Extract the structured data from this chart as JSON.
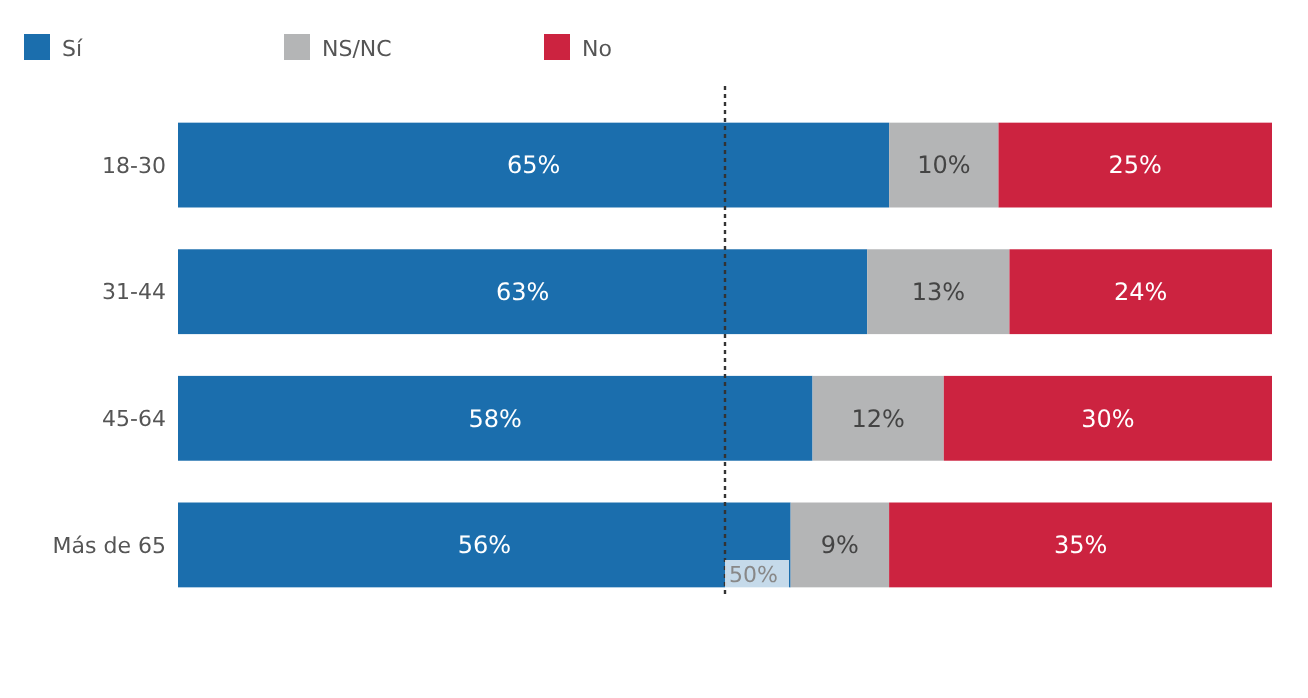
{
  "chart_data": {
    "type": "bar",
    "orientation": "horizontal",
    "stacked": true,
    "categories": [
      "18-30",
      "31-44",
      "45-64",
      "Más de 65"
    ],
    "series": [
      {
        "name": "Sí",
        "color": "#1b6ead",
        "values": [
          65,
          63,
          58,
          56
        ],
        "value_labels": [
          "65%",
          "63%",
          "58%",
          "56%"
        ]
      },
      {
        "name": "NS/NC",
        "color": "#b4b5b6",
        "values": [
          10,
          13,
          12,
          9
        ],
        "value_labels": [
          "10%",
          "13%",
          "12%",
          "9%"
        ]
      },
      {
        "name": "No",
        "color": "#cc2340",
        "values": [
          25,
          24,
          30,
          35
        ],
        "value_labels": [
          "25%",
          "24%",
          "30%",
          "35%"
        ]
      }
    ],
    "ref_lines": [
      {
        "axis": "x",
        "value": 50,
        "label": "50%",
        "line_style": "dotted",
        "color": "#333333"
      }
    ],
    "legend": "top left",
    "grid": false
  }
}
